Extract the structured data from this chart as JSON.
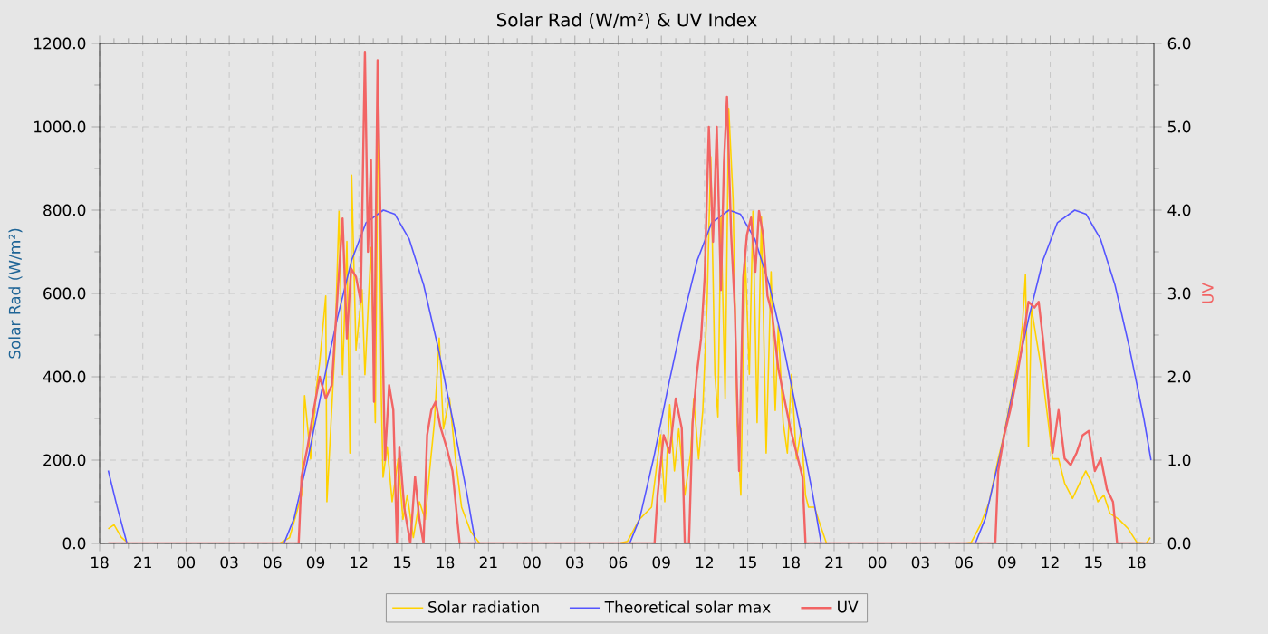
{
  "chart_data": {
    "type": "line",
    "title": "Solar Rad (W/m²) &  UV Index",
    "ylabel": "Solar Rad (W/m²)",
    "y2label": "UV",
    "xlim": [
      18,
      91.2
    ],
    "ylim": [
      0,
      1200
    ],
    "y2lim": [
      0,
      6
    ],
    "xticks": [
      {
        "value": 18,
        "label": "18"
      },
      {
        "value": 21,
        "label": "21"
      },
      {
        "value": 24,
        "label": "00"
      },
      {
        "value": 27,
        "label": "03"
      },
      {
        "value": 30,
        "label": "06"
      },
      {
        "value": 33,
        "label": "09"
      },
      {
        "value": 36,
        "label": "12"
      },
      {
        "value": 39,
        "label": "15"
      },
      {
        "value": 42,
        "label": "18"
      },
      {
        "value": 45,
        "label": "21"
      },
      {
        "value": 48,
        "label": "00"
      },
      {
        "value": 51,
        "label": "03"
      },
      {
        "value": 54,
        "label": "06"
      },
      {
        "value": 57,
        "label": "09"
      },
      {
        "value": 60,
        "label": "12"
      },
      {
        "value": 63,
        "label": "15"
      },
      {
        "value": 66,
        "label": "18"
      },
      {
        "value": 69,
        "label": "21"
      },
      {
        "value": 72,
        "label": "00"
      },
      {
        "value": 75,
        "label": "03"
      },
      {
        "value": 78,
        "label": "06"
      },
      {
        "value": 81,
        "label": "09"
      },
      {
        "value": 84,
        "label": "12"
      },
      {
        "value": 87,
        "label": "15"
      },
      {
        "value": 90,
        "label": "18"
      }
    ],
    "yticks": [
      {
        "value": 0,
        "label": "0.0"
      },
      {
        "value": 200,
        "label": "200.0"
      },
      {
        "value": 400,
        "label": "400.0"
      },
      {
        "value": 600,
        "label": "600.0"
      },
      {
        "value": 800,
        "label": "800.0"
      },
      {
        "value": 1000,
        "label": "1000.0"
      },
      {
        "value": 1200,
        "label": "1200.0"
      }
    ],
    "y2ticks": [
      {
        "value": 0,
        "label": "0.0"
      },
      {
        "value": 1,
        "label": "1.0"
      },
      {
        "value": 2,
        "label": "2.0"
      },
      {
        "value": 3,
        "label": "3.0"
      },
      {
        "value": 4,
        "label": "4.0"
      },
      {
        "value": 5,
        "label": "5.0"
      },
      {
        "value": 6,
        "label": "6.0"
      }
    ],
    "grid": true,
    "legend": "bottom",
    "series": [
      {
        "name": "Solar radiation",
        "color": "#ffd200",
        "x": [
          18.6,
          19.0,
          19.5,
          20.0,
          30.5,
          31.19,
          32.02,
          32.23,
          32.65,
          33.07,
          33.28,
          33.7,
          33.78,
          34.33,
          34.62,
          34.87,
          35.17,
          35.38,
          35.5,
          35.8,
          36.22,
          36.42,
          36.84,
          37.14,
          37.35,
          37.56,
          37.68,
          37.97,
          38.31,
          38.73,
          39.06,
          39.36,
          39.78,
          40.2,
          40.61,
          40.91,
          41.24,
          41.58,
          41.87,
          42.29,
          42.71,
          43.13,
          43.76,
          44.39,
          54.0,
          54.65,
          55.48,
          56.32,
          56.95,
          57.24,
          57.58,
          57.91,
          58.21,
          58.63,
          59.04,
          59.25,
          59.59,
          59.88,
          60.18,
          60.43,
          60.72,
          60.93,
          61.14,
          61.43,
          61.68,
          61.98,
          62.27,
          62.52,
          62.82,
          63.11,
          63.36,
          63.65,
          63.95,
          64.28,
          64.62,
          64.91,
          65.12,
          65.46,
          65.75,
          66.04,
          66.38,
          66.71,
          67.01,
          67.22,
          67.63,
          68.05,
          68.47,
          78.0,
          78.51,
          79.14,
          79.77,
          80.39,
          80.69,
          81.11,
          81.44,
          81.86,
          82.07,
          82.28,
          82.49,
          82.7,
          83.03,
          83.45,
          83.87,
          84.17,
          84.58,
          85.0,
          85.55,
          86.05,
          86.47,
          86.89,
          87.31,
          87.73,
          88.15,
          88.77,
          89.4,
          90.03,
          90.66,
          90.95
        ],
        "values": [
          35,
          45,
          15,
          0,
          0,
          14,
          116,
          355,
          203,
          378,
          435,
          594,
          100,
          464,
          797,
          405,
          725,
          217,
          884,
          464,
          609,
          405,
          710,
          290,
          1087,
          348,
          159,
          232,
          100,
          203,
          58,
          116,
          14,
          100,
          58,
          174,
          290,
          493,
          275,
          350,
          203,
          87,
          29,
          0,
          0,
          5,
          58,
          87,
          261,
          100,
          333,
          174,
          275,
          116,
          217,
          348,
          203,
          319,
          580,
          928,
          406,
          304,
          783,
          348,
          1044,
          826,
          290,
          116,
          696,
          406,
          797,
          290,
          783,
          217,
          652,
          319,
          522,
          290,
          217,
          406,
          203,
          275,
          116,
          87,
          87,
          43,
          0,
          0,
          2,
          43,
          100,
          203,
          246,
          319,
          377,
          464,
          522,
          645,
          232,
          565,
          493,
          406,
          290,
          203,
          203,
          145,
          108,
          145,
          174,
          145,
          100,
          116,
          72,
          58,
          36,
          2,
          0,
          14
        ]
      },
      {
        "name": "Theoretical solar max",
        "color": "#5555ff",
        "x": [
          18.6,
          19.2,
          19.9,
          30.8,
          31.5,
          32.5,
          33.5,
          34.5,
          35.5,
          36.5,
          37.7,
          38.5,
          39.5,
          40.5,
          41.5,
          42.5,
          43.5,
          44.1,
          54.8,
          55.5,
          56.5,
          57.5,
          58.5,
          59.5,
          60.5,
          61.7,
          62.5,
          63.5,
          64.5,
          65.5,
          66.5,
          67.5,
          68.1,
          78.8,
          79.5,
          80.5,
          81.5,
          82.5,
          83.5,
          84.5,
          85.7,
          86.5,
          87.5,
          88.5,
          89.5,
          90.5,
          91.0
        ],
        "values": [
          175,
          90,
          0,
          0,
          60,
          210,
          380,
          540,
          680,
          770,
          800,
          790,
          730,
          620,
          470,
          300,
          120,
          0,
          0,
          60,
          210,
          380,
          540,
          680,
          770,
          800,
          790,
          730,
          620,
          470,
          300,
          120,
          0,
          0,
          60,
          210,
          380,
          540,
          680,
          770,
          800,
          790,
          730,
          620,
          470,
          300,
          200
        ]
      },
      {
        "name": "UV",
        "color": "#f26464",
        "axis": "y2",
        "x": [
          18.6,
          31.82,
          32.02,
          32.44,
          32.86,
          33.28,
          33.7,
          34.12,
          34.54,
          34.87,
          35.17,
          35.46,
          35.8,
          36.13,
          36.42,
          36.63,
          36.84,
          37.05,
          37.3,
          37.56,
          37.81,
          38.1,
          38.39,
          38.64,
          38.81,
          39.15,
          39.57,
          39.9,
          40.2,
          40.49,
          40.74,
          41.03,
          41.33,
          41.66,
          42.08,
          42.5,
          42.83,
          43.0,
          56.53,
          56.74,
          57.16,
          57.58,
          58.0,
          58.42,
          58.63,
          58.92,
          59.17,
          59.46,
          59.76,
          60.01,
          60.3,
          60.59,
          60.85,
          61.14,
          61.35,
          61.56,
          61.85,
          62.1,
          62.4,
          62.69,
          62.94,
          63.23,
          63.53,
          63.78,
          64.07,
          64.37,
          64.7,
          65.12,
          65.54,
          65.96,
          66.38,
          66.8,
          67.01,
          80.19,
          80.39,
          80.81,
          81.23,
          81.65,
          82.07,
          82.49,
          82.91,
          83.2,
          83.54,
          83.87,
          84.17,
          84.58,
          85.0,
          85.42,
          85.84,
          86.26,
          86.68,
          87.1,
          87.52,
          87.94,
          88.36,
          88.65,
          91.0
        ],
        "values": [
          0,
          0,
          0.8,
          1.16,
          1.6,
          2.0,
          1.74,
          1.9,
          3.04,
          3.9,
          2.46,
          3.3,
          3.2,
          2.9,
          5.9,
          3.5,
          4.6,
          1.7,
          5.8,
          3.3,
          1.0,
          1.9,
          1.6,
          0,
          1.16,
          0.43,
          0,
          0.8,
          0.29,
          0,
          1.3,
          1.6,
          1.7,
          1.4,
          1.16,
          0.87,
          0.29,
          0,
          0,
          0.58,
          1.3,
          1.09,
          1.74,
          1.38,
          0,
          0,
          1.45,
          2.03,
          2.46,
          3.19,
          5.0,
          3.62,
          5.0,
          3.04,
          4.57,
          5.36,
          3.7,
          2.83,
          0.87,
          3.19,
          3.7,
          3.91,
          3.26,
          3.99,
          3.7,
          2.97,
          2.75,
          2.1,
          1.74,
          1.38,
          1.09,
          0.8,
          0,
          0,
          0.87,
          1.3,
          1.6,
          1.96,
          2.39,
          2.9,
          2.83,
          2.9,
          2.39,
          1.74,
          1.09,
          1.6,
          1.02,
          0.94,
          1.09,
          1.3,
          1.35,
          0.87,
          1.02,
          0.65,
          0.5,
          0,
          0
        ]
      }
    ]
  }
}
